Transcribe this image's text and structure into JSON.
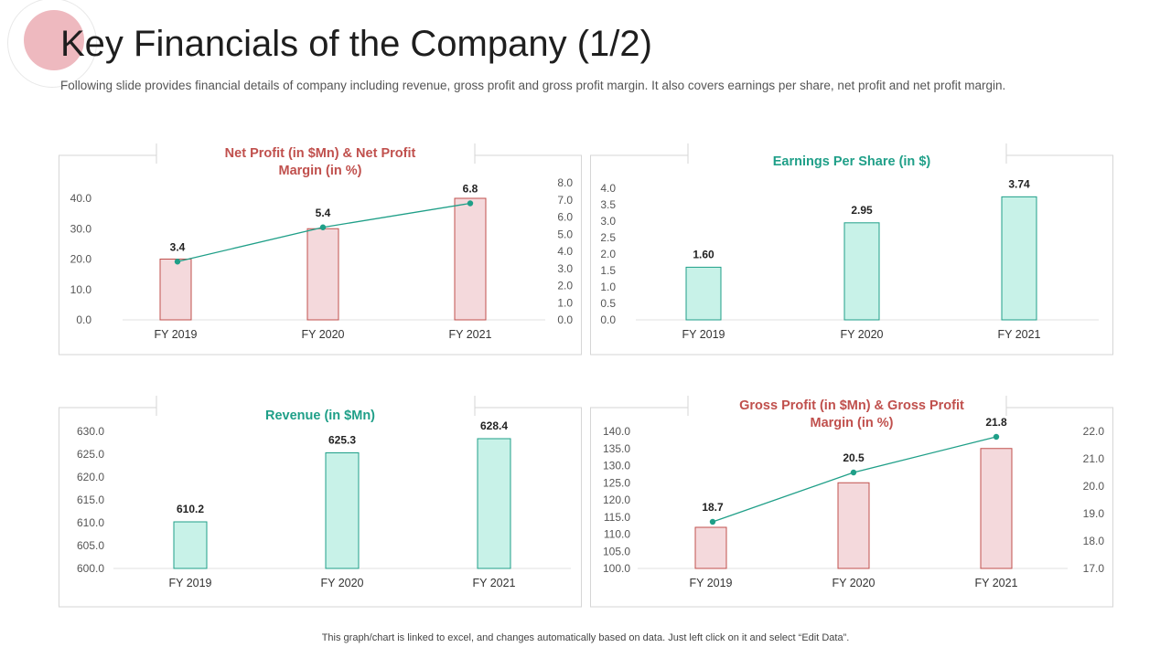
{
  "header": {
    "title": "Key Financials of the Company (1/2)",
    "subtitle": "Following slide provides financial details of company including revenue, gross profit and gross profit margin. It also covers earnings per share, net profit and net profit margin."
  },
  "footer": {
    "note": "This graph/chart is linked to excel, and changes automatically based on data. Just left click on it and select “Edit Data”."
  },
  "colors": {
    "red_accent": "#c0504d",
    "teal_accent": "#1f9f88",
    "pink_fill": "#f4d9dc",
    "pink_stroke": "#c0504d",
    "mint_fill": "#c8f2e8",
    "mint_stroke": "#1f9f88",
    "line_color": "#1f9f88"
  },
  "chart_data": [
    {
      "id": "net-profit",
      "type": "bar+line",
      "title": [
        "Net Profit (in $Mn) & Net Profit",
        "Margin (in %)"
      ],
      "title_color": "#c0504d",
      "categories": [
        "FY 2019",
        "FY 2020",
        "FY 2021"
      ],
      "series": [
        {
          "name": "Net Profit (in $Mn)",
          "type": "bar",
          "axis": "left",
          "values": [
            20.0,
            30.0,
            40.0
          ]
        },
        {
          "name": "Net Profit Margin (in %)",
          "type": "line",
          "axis": "right",
          "values": [
            3.4,
            5.4,
            6.8
          ],
          "labels": [
            "3.4",
            "5.4",
            "6.8"
          ]
        }
      ],
      "left_axis": {
        "ylim": [
          0,
          40
        ],
        "ticks": [
          "0.0",
          "10.0",
          "20.0",
          "30.0",
          "40.0"
        ]
      },
      "right_axis": {
        "ylim": [
          0,
          8
        ],
        "ticks": [
          "0.0",
          "1.0",
          "2.0",
          "3.0",
          "4.0",
          "5.0",
          "6.0",
          "7.0",
          "8.0"
        ]
      },
      "bar_style": "pink",
      "grid": false
    },
    {
      "id": "eps",
      "type": "bar",
      "title": [
        "Earnings Per Share (in $)"
      ],
      "title_color": "#1f9f88",
      "categories": [
        "FY 2019",
        "FY 2020",
        "FY 2021"
      ],
      "series": [
        {
          "name": "Earnings Per Share (in $)",
          "type": "bar",
          "axis": "left",
          "values": [
            1.6,
            2.95,
            3.74
          ],
          "labels": [
            "1.60",
            "2.95",
            "3.74"
          ]
        }
      ],
      "left_axis": {
        "ylim": [
          0,
          4
        ],
        "ticks": [
          "0.0",
          "0.5",
          "1.0",
          "1.5",
          "2.0",
          "2.5",
          "3.0",
          "3.5",
          "4.0"
        ]
      },
      "bar_style": "mint",
      "grid": false
    },
    {
      "id": "revenue",
      "type": "bar",
      "title": [
        "Revenue (in $Mn)"
      ],
      "title_color": "#1f9f88",
      "categories": [
        "FY 2019",
        "FY 2020",
        "FY 2021"
      ],
      "series": [
        {
          "name": "Revenue (in $Mn)",
          "type": "bar",
          "axis": "left",
          "values": [
            610.2,
            625.3,
            628.4
          ],
          "labels": [
            "610.2",
            "625.3",
            "628.4"
          ]
        }
      ],
      "left_axis": {
        "ylim": [
          600,
          630
        ],
        "ticks": [
          "600.0",
          "605.0",
          "610.0",
          "615.0",
          "620.0",
          "625.0",
          "630.0"
        ]
      },
      "bar_style": "mint",
      "grid": false
    },
    {
      "id": "gross-profit",
      "type": "bar+line",
      "title": [
        "Gross Profit (in $Mn) & Gross Profit",
        "Margin (in %)"
      ],
      "title_color": "#c0504d",
      "categories": [
        "FY 2019",
        "FY 2020",
        "FY 2021"
      ],
      "series": [
        {
          "name": "Gross Profit (in $Mn)",
          "type": "bar",
          "axis": "left",
          "values": [
            112.0,
            125.0,
            135.0
          ]
        },
        {
          "name": "Gross Profit Margin (in %)",
          "type": "line",
          "axis": "right",
          "values": [
            18.7,
            20.5,
            21.8
          ],
          "labels": [
            "18.7",
            "20.5",
            "21.8"
          ]
        }
      ],
      "left_axis": {
        "ylim": [
          100,
          140
        ],
        "ticks": [
          "100.0",
          "105.0",
          "110.0",
          "115.0",
          "120.0",
          "125.0",
          "130.0",
          "135.0",
          "140.0"
        ]
      },
      "right_axis": {
        "ylim": [
          17,
          22
        ],
        "ticks": [
          "17.0",
          "18.0",
          "19.0",
          "20.0",
          "21.0",
          "22.0"
        ]
      },
      "bar_style": "pink",
      "grid": false
    }
  ]
}
